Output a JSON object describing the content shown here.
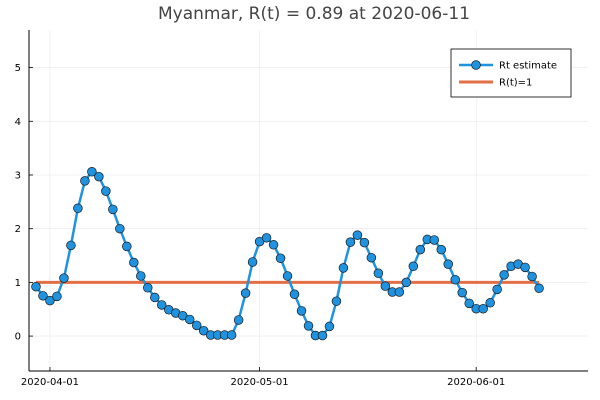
{
  "chart_data": {
    "type": "line",
    "title": "Myanmar, R(t) = 0.89 at 2020-06-11",
    "xlabel": "",
    "ylabel": "",
    "x_start": "2020-03-30",
    "x_ticks": [
      "2020-04-01",
      "2020-05-01",
      "2020-06-01"
    ],
    "y_ticks": [
      "0",
      "1",
      "2",
      "3",
      "4",
      "5"
    ],
    "xlim": [
      "2020-03-29",
      "2020-06-17"
    ],
    "ylim": [
      -0.65,
      5.7
    ],
    "grid": true,
    "legend_position": "top-right",
    "series": [
      {
        "name": "Rt estimate",
        "color": "#1f93e0",
        "marker": "circle",
        "values": [
          0.92,
          0.75,
          0.66,
          0.74,
          1.08,
          1.69,
          2.38,
          2.89,
          3.06,
          2.97,
          2.7,
          2.36,
          2.0,
          1.67,
          1.37,
          1.12,
          0.9,
          0.72,
          0.58,
          0.49,
          0.43,
          0.38,
          0.31,
          0.2,
          0.1,
          0.02,
          0.02,
          0.02,
          0.02,
          0.3,
          0.8,
          1.38,
          1.76,
          1.83,
          1.7,
          1.45,
          1.12,
          0.78,
          0.47,
          0.19,
          0.01,
          0.01,
          0.18,
          0.65,
          1.27,
          1.75,
          1.88,
          1.74,
          1.46,
          1.17,
          0.93,
          0.82,
          0.82,
          1.0,
          1.3,
          1.61,
          1.8,
          1.79,
          1.61,
          1.34,
          1.05,
          0.81,
          0.61,
          0.51,
          0.51,
          0.62,
          0.87,
          1.14,
          1.3,
          1.34,
          1.28,
          1.11,
          0.89
        ]
      },
      {
        "name": "R(t)=1",
        "color": "#e26f46",
        "values": [
          1,
          1
        ]
      }
    ]
  }
}
